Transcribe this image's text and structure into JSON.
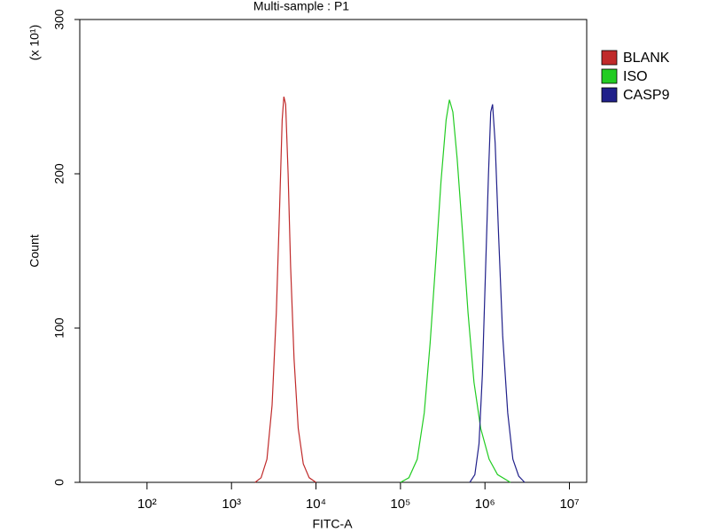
{
  "chart_data": {
    "type": "line",
    "title": "Multi-sample : P1",
    "x_label": "FITC-A",
    "y_label": "Count",
    "y_scale_note": "(x 10¹)",
    "x_log": true,
    "xlim": [
      16,
      16000000
    ],
    "xticks": [
      {
        "value": 100,
        "label": "10²"
      },
      {
        "value": 1000,
        "label": "10³"
      },
      {
        "value": 10000,
        "label": "10⁴"
      },
      {
        "value": 100000,
        "label": "10⁵"
      },
      {
        "value": 1000000,
        "label": "10⁶"
      },
      {
        "value": 10000000,
        "label": "10⁷"
      }
    ],
    "ylim": [
      0,
      300
    ],
    "yticks": [
      0,
      100,
      200,
      300
    ],
    "legend_position": "right",
    "series": [
      {
        "name": "BLANK",
        "color": "#c02a2a",
        "x": [
          1900,
          2240,
          2630,
          3020,
          3390,
          3720,
          3980,
          4170,
          4370,
          4680,
          5010,
          5500,
          6170,
          7080,
          8320,
          10000
        ],
        "values": [
          0,
          3,
          15,
          50,
          110,
          180,
          235,
          250,
          245,
          200,
          140,
          80,
          35,
          12,
          3,
          0
        ]
      },
      {
        "name": "ISO",
        "color": "#22cc22",
        "x": [
          100000,
          126000,
          158000,
          191000,
          224000,
          263000,
          302000,
          347000,
          380000,
          417000,
          468000,
          537000,
          631000,
          741000,
          891000,
          1120000,
          1410000,
          2000000
        ],
        "values": [
          0,
          3,
          15,
          45,
          90,
          145,
          195,
          235,
          248,
          240,
          210,
          165,
          110,
          65,
          35,
          15,
          5,
          0
        ]
      },
      {
        "name": "CASP9",
        "color": "#20208a",
        "x": [
          661000,
          759000,
          851000,
          933000,
          1020000,
          1100000,
          1170000,
          1230000,
          1320000,
          1450000,
          1620000,
          1860000,
          2140000,
          2510000,
          2950000
        ],
        "values": [
          0,
          5,
          25,
          70,
          140,
          200,
          240,
          245,
          220,
          160,
          95,
          45,
          15,
          4,
          0
        ]
      }
    ]
  }
}
